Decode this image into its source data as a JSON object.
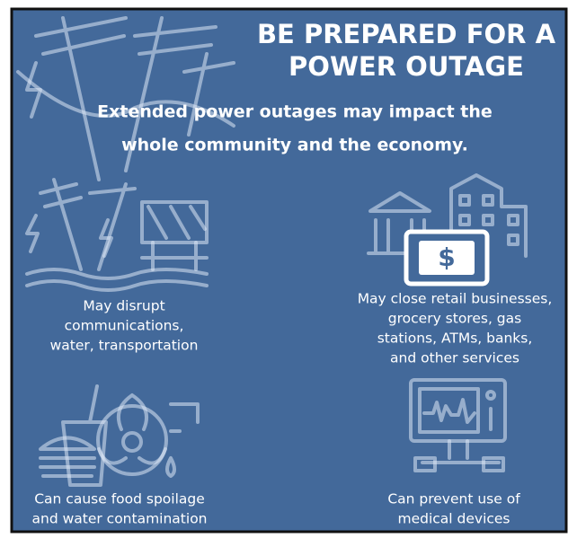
{
  "title": [
    "BE PREPARED FOR A",
    "POWER OUTAGE"
  ],
  "subtitle": [
    "Extended power outages may impact the",
    "whole community and the economy."
  ],
  "impacts": [
    {
      "caption": [
        "May disrupt",
        "communications,",
        "water, transportation"
      ]
    },
    {
      "caption": [
        "May close retail businesses,",
        "grocery stores, gas",
        "stations, ATMs, banks,",
        "and other services"
      ],
      "icon_label": "$"
    },
    {
      "caption": [
        "Can cause food spoilage",
        "and water contamination"
      ]
    },
    {
      "caption": [
        "Can prevent use of",
        "medical devices"
      ]
    }
  ]
}
